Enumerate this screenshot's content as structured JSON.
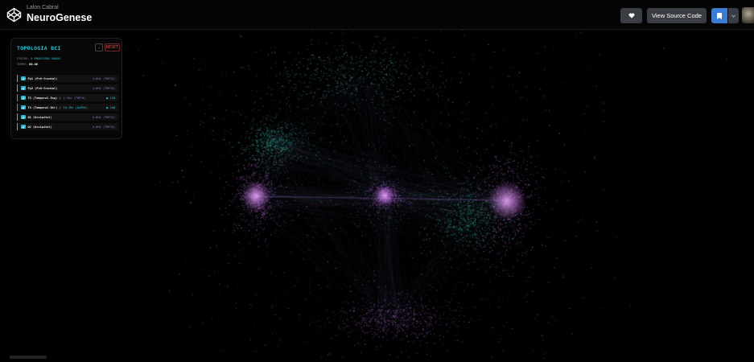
{
  "header": {
    "author": "Lalon Cabral",
    "title": "NeuroGenese",
    "source_button": "View Source Code",
    "icons": [
      "codepen-logo-icon",
      "heart-icon",
      "bookmark-icon",
      "chevron-down-icon"
    ]
  },
  "panel": {
    "title": "TOPOLOGIA BCI",
    "minus_label": "-",
    "reset_label": "RESET",
    "status_label": "STATUS:",
    "status_value": "6 PROCESSOS ONDAS",
    "time_label": "TEMPO:",
    "time_value": "00.06",
    "channels": [
      {
        "label": "Fp1 (Pré-frontal)",
        "value": "4.0Hz (THETA)",
        "checked": true
      },
      {
        "label": "Fp2 (Pré-frontal)",
        "value": "4.0Hz (THETA)",
        "checked": true
      },
      {
        "label": "T3 (Temporal Esq)",
        "extra": "♫",
        "value": "4.5Hz (THETA)",
        "dot": "● 138",
        "checked": true
      },
      {
        "label": "T4 (Temporal Dir)",
        "extra": "♫",
        "value": "10.7Hz (ALPHA)",
        "dot": "● 188",
        "checked": true
      },
      {
        "label": "O1 (Occipital)",
        "value": "6.0Hz (THETA)",
        "checked": true
      },
      {
        "label": "O2 (Occipital)",
        "value": "5.0Hz (THETA)",
        "checked": true
      }
    ]
  },
  "colors": {
    "accent_cyan": "#26c6da",
    "accent_purple": "#b060e0",
    "reset_red": "#ef5350",
    "bookmark_blue": "#3b7bd8"
  }
}
